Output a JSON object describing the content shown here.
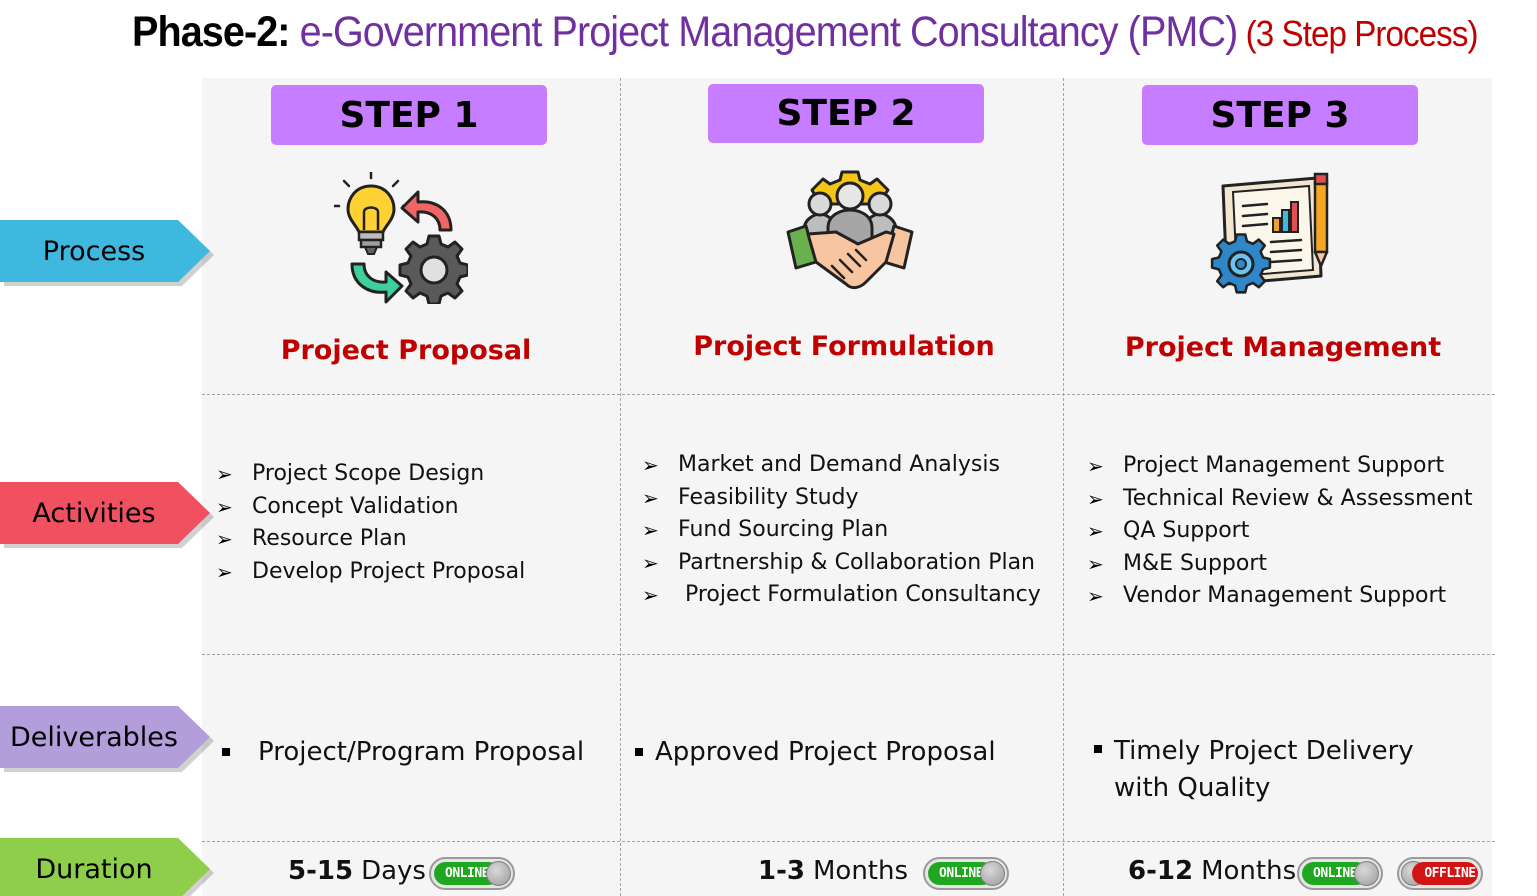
{
  "title": {
    "prefix": "Phase-2:",
    "main": " e-Government Project Management Consultancy (PMC)",
    "suffix": " (3 Step Process)"
  },
  "row_labels": [
    {
      "label": "Process",
      "color": "#3fb8e0"
    },
    {
      "label": "Activities",
      "color": "#f0505f"
    },
    {
      "label": "Deliverables",
      "color": "#b39ddb"
    },
    {
      "label": "Duration",
      "color": "#8fce4a"
    }
  ],
  "steps": [
    {
      "badge": "STEP 1",
      "name": "Project Proposal",
      "icon": "lightbulb-gear-cycle-icon",
      "activities": [
        "Project Scope Design",
        "Concept Validation",
        "Resource Plan",
        "Develop Project Proposal"
      ],
      "deliverable": "Project/Program Proposal",
      "duration_value": "5-15",
      "duration_unit": "Days",
      "toggles": [
        "ONLINE"
      ]
    },
    {
      "badge": "STEP 2",
      "name": "Project Formulation",
      "icon": "team-handshake-gear-icon",
      "activities": [
        "Market and Demand Analysis",
        "Feasibility Study",
        "Fund Sourcing Plan",
        "Partnership & Collaboration Plan",
        " Project Formulation Consultancy"
      ],
      "deliverable": "Approved Project Proposal",
      "duration_value": "1-3",
      "duration_unit": "Months",
      "toggles": [
        "ONLINE"
      ]
    },
    {
      "badge": "STEP 3",
      "name": "Project Management",
      "icon": "report-chart-gear-pencil-icon",
      "activities": [
        "Project Management Support",
        "Technical Review & Assessment",
        "QA Support",
        "M&E Support",
        "Vendor Management Support"
      ],
      "deliverable": "Timely Project Delivery\nwith Quality",
      "duration_value": "6-12",
      "duration_unit": "Months",
      "toggles": [
        "ONLINE",
        "OFFLINE"
      ]
    }
  ],
  "colors": {
    "step_badge": "#c77dff",
    "step_name": "#c00000",
    "title_main": "#7030a0",
    "title_suffix": "#c00000",
    "online": "#1fa81f",
    "offline": "#d31414"
  }
}
